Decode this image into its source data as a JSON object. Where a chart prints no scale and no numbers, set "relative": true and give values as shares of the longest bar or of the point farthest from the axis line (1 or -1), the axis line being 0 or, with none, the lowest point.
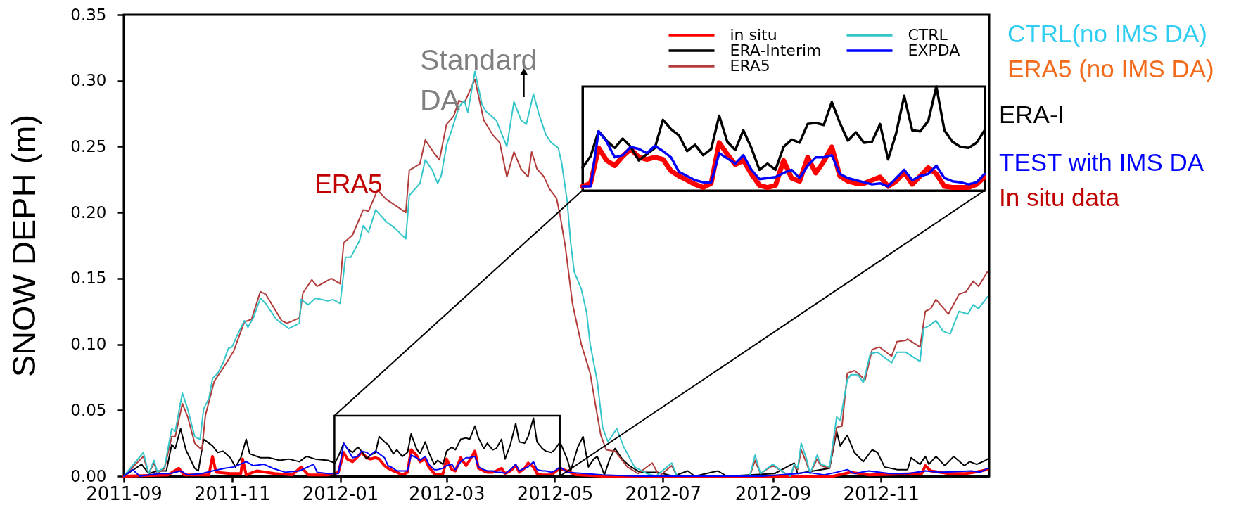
{
  "chart_data": [
    {
      "type": "line",
      "ylabel": "SNOW DEPH (m)",
      "xlim": [
        "2011-09-01",
        "2013-01-01"
      ],
      "xticks": [
        "2011-09",
        "2011-11",
        "2012-01",
        "2012-03",
        "2012-05",
        "2012-07",
        "2012-09",
        "2012-11"
      ],
      "ylim": [
        0,
        0.35
      ],
      "yticks": [
        {
          "value": 0,
          "label": "0.00"
        },
        0.05,
        {
          "value": 0.1,
          "label": "0.10"
        },
        0.15,
        {
          "value": 0.2,
          "label": "0.20"
        },
        0.25,
        {
          "value": 0.3,
          "label": "0.30"
        },
        0.35
      ],
      "legend": "top right",
      "series": [
        {
          "name": "in situ",
          "color": "#ff0000",
          "x": [
            "2011-09-01",
            "2011-09-26",
            "2011-10-02",
            "2011-10-05",
            "2011-10-19",
            "2011-10-21",
            "2011-10-23",
            "2011-10-31",
            "2011-11-06",
            "2011-11-07",
            "2011-11-09",
            "2011-11-15",
            "2011-11-25",
            "2011-12-05",
            "2011-12-10",
            "2011-12-14",
            "2011-12-25",
            "2011-12-29",
            "2011-12-31",
            "2012-01-03",
            "2012-01-05",
            "2012-01-08",
            "2012-01-11",
            "2012-01-13",
            "2012-01-16",
            "2012-01-18",
            "2012-01-21",
            "2012-01-23",
            "2012-01-26",
            "2012-01-28",
            "2012-01-31",
            "2012-02-02",
            "2012-02-05",
            "2012-02-08",
            "2012-02-10",
            "2012-02-13",
            "2012-02-15",
            "2012-02-18",
            "2012-02-20",
            "2012-02-23",
            "2012-02-25",
            "2012-02-28",
            "2012-03-01",
            "2012-03-04",
            "2012-03-06",
            "2012-03-09",
            "2012-03-12",
            "2012-03-14",
            "2012-03-17",
            "2012-03-19",
            "2012-03-22",
            "2012-03-24",
            "2012-03-27",
            "2012-03-29",
            "2012-04-01",
            "2012-04-03",
            "2012-04-06",
            "2012-04-09",
            "2012-04-11",
            "2012-04-14",
            "2012-04-16",
            "2012-04-19",
            "2012-04-21",
            "2012-04-24",
            "2012-04-26",
            "2012-04-29",
            "2012-05-01",
            "2012-05-04",
            "2012-05-08",
            "2012-05-13",
            "2012-05-28",
            "2012-10-05",
            "2012-10-15",
            "2012-10-25",
            "2012-11-24",
            "2012-11-26",
            "2012-11-29",
            "2012-12-09",
            "2012-12-19",
            "2012-12-24",
            "2012-12-31"
          ],
          "values": [
            0,
            0.001,
            0.006,
            0.001,
            0.001,
            0.015,
            0.003,
            0.002,
            0.002,
            0.013,
            0.001,
            0.004,
            0.002,
            0.001,
            0.007,
            0.001,
            0.001,
            0.002,
            0.003,
            0.018,
            0.013,
            0.011,
            0.015,
            0.018,
            0.014,
            0.013,
            0.014,
            0.013,
            0.008,
            0.006,
            0.004,
            0.003,
            0.001,
            0.003,
            0.02,
            0.016,
            0.011,
            0.013,
            0.007,
            0.002,
            0.001,
            0.002,
            0.013,
            0.005,
            0.004,
            0.014,
            0.008,
            0.012,
            0.019,
            0.006,
            0.004,
            0.003,
            0.003,
            0.004,
            0.006,
            0.002,
            0.004,
            0.008,
            0.003,
            0.006,
            0.01,
            0.007,
            0.002,
            0.001,
            0.001,
            0.001,
            0.003,
            0.006,
            0.004,
            0.001,
            0,
            0,
            0.003,
            0.001,
            0.002,
            0.008,
            0.004,
            0.002,
            0.002,
            0.003,
            0.005
          ]
        },
        {
          "name": "ERA-Interim",
          "color": "#000000",
          "x": [
            "2011-09-01",
            "2011-09-11",
            "2011-09-15",
            "2011-09-20",
            "2011-09-25",
            "2011-09-28",
            "2011-09-30",
            "2011-10-03",
            "2011-10-06",
            "2011-10-11",
            "2011-10-13",
            "2011-10-16",
            "2011-10-19",
            "2011-10-21",
            "2011-10-24",
            "2011-10-27",
            "2011-10-31",
            "2011-11-03",
            "2011-11-06",
            "2011-11-09",
            "2011-11-11",
            "2011-11-17",
            "2011-11-22",
            "2011-11-28",
            "2011-12-03",
            "2011-12-09",
            "2011-12-13",
            "2011-12-18",
            "2011-12-25",
            "2011-12-29",
            "2011-12-31",
            "2012-01-03",
            "2012-01-05",
            "2012-01-08",
            "2012-01-11",
            "2012-01-13",
            "2012-01-16",
            "2012-01-18",
            "2012-01-21",
            "2012-01-23",
            "2012-01-26",
            "2012-01-28",
            "2012-01-31",
            "2012-02-02",
            "2012-02-05",
            "2012-02-08",
            "2012-02-10",
            "2012-02-13",
            "2012-02-15",
            "2012-02-18",
            "2012-02-20",
            "2012-02-23",
            "2012-02-25",
            "2012-02-28",
            "2012-03-01",
            "2012-03-04",
            "2012-03-06",
            "2012-03-09",
            "2012-03-12",
            "2012-03-14",
            "2012-03-17",
            "2012-03-19",
            "2012-03-22",
            "2012-03-24",
            "2012-03-27",
            "2012-03-29",
            "2012-04-01",
            "2012-04-03",
            "2012-04-06",
            "2012-04-09",
            "2012-04-11",
            "2012-04-14",
            "2012-04-16",
            "2012-04-19",
            "2012-04-21",
            "2012-04-24",
            "2012-04-26",
            "2012-04-29",
            "2012-05-01",
            "2012-05-04",
            "2012-05-08",
            "2012-05-10",
            "2012-05-14",
            "2012-05-17",
            "2012-05-20",
            "2012-05-23",
            "2012-05-25",
            "2012-05-29",
            "2012-06-01",
            "2012-06-04",
            "2012-06-08",
            "2012-06-12",
            "2012-06-18",
            "2012-06-28",
            "2012-07-07",
            "2012-07-15",
            "2012-07-19",
            "2012-08-01",
            "2012-08-06",
            "2012-09-02",
            "2012-09-13",
            "2012-09-15",
            "2012-10-03",
            "2012-10-07",
            "2012-10-09",
            "2012-10-13",
            "2012-10-17",
            "2012-10-22",
            "2012-10-27",
            "2012-10-30",
            "2012-11-03",
            "2012-11-10",
            "2012-11-16",
            "2012-11-18",
            "2012-11-23",
            "2012-11-26",
            "2012-11-28",
            "2012-12-02",
            "2012-12-07",
            "2012-12-12",
            "2012-12-18",
            "2012-12-21",
            "2012-12-25",
            "2012-12-30",
            "2012-12-31"
          ],
          "values": [
            0,
            0.009,
            0.002,
            0.004,
            0.004,
            0.024,
            0.021,
            0.036,
            0.02,
            0.006,
            0.004,
            0.028,
            0.025,
            0.023,
            0.018,
            0.019,
            0.014,
            0.007,
            0.014,
            0.028,
            0.017,
            0.014,
            0.014,
            0.012,
            0.013,
            0.011,
            0.015,
            0.013,
            0.012,
            0.01,
            0.015,
            0.025,
            0.021,
            0.018,
            0.022,
            0.019,
            0.013,
            0.016,
            0.018,
            0.03,
            0.026,
            0.024,
            0.017,
            0.02,
            0.015,
            0.018,
            0.032,
            0.021,
            0.017,
            0.026,
            0.018,
            0.009,
            0.012,
            0.009,
            0.019,
            0.022,
            0.02,
            0.028,
            0.029,
            0.028,
            0.038,
            0.029,
            0.021,
            0.025,
            0.02,
            0.021,
            0.028,
            0.013,
            0.024,
            0.04,
            0.026,
            0.025,
            0.03,
            0.044,
            0.026,
            0.021,
            0.019,
            0.018,
            0.02,
            0.026,
            0.013,
            0.004,
            0.022,
            0.03,
            0.007,
            0.013,
            0.015,
            0.001,
            0.013,
            0.021,
            0.013,
            0.008,
            0.003,
            0.003,
            0,
            0.004,
            0,
            0.004,
            0,
            0.002,
            0.01,
            0.002,
            0.006,
            0.034,
            0.023,
            0.031,
            0.018,
            0.011,
            0.02,
            0.018,
            0.007,
            0.005,
            0.005,
            0.014,
            0.009,
            0.015,
            0.009,
            0.015,
            0.008,
            0.015,
            0.008,
            0.011,
            0.009,
            0.012,
            0.013
          ]
        },
        {
          "name": "ERA5",
          "color": "#b23b3b",
          "x": [
            "2011-09-01",
            "2011-09-12",
            "2011-09-15",
            "2011-09-18",
            "2011-09-20",
            "2011-09-24",
            "2011-09-28",
            "2011-09-30",
            "2011-10-04",
            "2011-10-07",
            "2011-10-11",
            "2011-10-15",
            "2011-10-17",
            "2011-10-22",
            "2011-10-28",
            "2011-11-02",
            "2011-11-08",
            "2011-11-12",
            "2011-11-17",
            "2011-11-20",
            "2011-11-29",
            "2011-12-02",
            "2011-12-09",
            "2011-12-11",
            "2011-12-16",
            "2011-12-19",
            "2011-12-27",
            "2012-01-01",
            "2012-01-03",
            "2012-01-08",
            "2012-01-14",
            "2012-01-17",
            "2012-01-22",
            "2012-01-27",
            "2012-02-07",
            "2012-02-09",
            "2012-02-15",
            "2012-02-18",
            "2012-02-23",
            "2012-02-26",
            "2012-03-01",
            "2012-03-05",
            "2012-03-08",
            "2012-03-11",
            "2012-03-17",
            "2012-03-22",
            "2012-03-27",
            "2012-03-31",
            "2012-04-04",
            "2012-04-08",
            "2012-04-12",
            "2012-04-16",
            "2012-04-18",
            "2012-04-21",
            "2012-04-25",
            "2012-04-28",
            "2012-05-02",
            "2012-05-04",
            "2012-05-07",
            "2012-05-11",
            "2012-05-16",
            "2012-05-21",
            "2012-05-24",
            "2012-05-27",
            "2012-05-30",
            "2012-06-04",
            "2012-06-11",
            "2012-06-17",
            "2012-06-25",
            "2012-06-29",
            "2012-07-06",
            "2012-07-09",
            "2012-08-06",
            "2012-08-19",
            "2012-08-22",
            "2012-08-25",
            "2012-09-01",
            "2012-09-07",
            "2012-09-11",
            "2012-09-13",
            "2012-09-15",
            "2012-09-17",
            "2012-09-20",
            "2012-09-22",
            "2012-09-26",
            "2012-09-28",
            "2012-10-03",
            "2012-10-07",
            "2012-10-10",
            "2012-10-13",
            "2012-10-17",
            "2012-10-19",
            "2012-10-23",
            "2012-10-27",
            "2012-10-31",
            "2012-11-07",
            "2012-11-10",
            "2012-11-15",
            "2012-11-16",
            "2012-11-23",
            "2012-11-26",
            "2012-11-29",
            "2012-12-02",
            "2012-12-09",
            "2012-12-15",
            "2012-12-19",
            "2012-12-23",
            "2012-12-26",
            "2012-12-31"
          ],
          "values": [
            0,
            0.015,
            0.002,
            0.01,
            0.002,
            0.006,
            0.03,
            0.03,
            0.055,
            0.045,
            0.025,
            0.02,
            0.046,
            0.072,
            0.084,
            0.095,
            0.117,
            0.119,
            0.14,
            0.138,
            0.118,
            0.116,
            0.12,
            0.139,
            0.149,
            0.144,
            0.15,
            0.146,
            0.177,
            0.183,
            0.202,
            0.201,
            0.217,
            0.21,
            0.2,
            0.232,
            0.237,
            0.255,
            0.245,
            0.24,
            0.267,
            0.273,
            0.285,
            0.283,
            0.301,
            0.27,
            0.259,
            0.253,
            0.227,
            0.246,
            0.233,
            0.227,
            0.246,
            0.233,
            0.227,
            0.218,
            0.211,
            0.198,
            0.174,
            0.131,
            0.1,
            0.078,
            0.054,
            0.031,
            0.02,
            0.019,
            0.007,
            0.002,
            0.01,
            0,
            0.008,
            0,
            0,
            0,
            0.012,
            0.002,
            0.008,
            0.003,
            0,
            0.008,
            0.005,
            0.02,
            0.01,
            0.002,
            0.013,
            0.008,
            0.006,
            0.037,
            0.038,
            0.078,
            0.08,
            0.078,
            0.073,
            0.096,
            0.098,
            0.091,
            0.102,
            0.103,
            0.104,
            0.098,
            0.125,
            0.127,
            0.134,
            0.123,
            0.138,
            0.14,
            0.148,
            0.144,
            0.155
          ]
        },
        {
          "name": "CTRL",
          "color": "#33c5c9",
          "x": [
            "2011-09-01",
            "2011-09-12",
            "2011-09-15",
            "2011-09-18",
            "2011-09-20",
            "2011-09-24",
            "2011-09-28",
            "2011-09-30",
            "2011-10-04",
            "2011-10-07",
            "2011-10-11",
            "2011-10-14",
            "2011-10-16",
            "2011-10-19",
            "2011-10-21",
            "2011-10-24",
            "2011-10-27",
            "2011-10-30",
            "2011-11-01",
            "2011-11-04",
            "2011-11-08",
            "2011-11-10",
            "2011-11-13",
            "2011-11-17",
            "2011-11-20",
            "2011-11-26",
            "2011-12-03",
            "2011-12-09",
            "2011-12-10",
            "2011-12-14",
            "2011-12-18",
            "2011-12-25",
            "2011-12-28",
            "2012-01-01",
            "2012-01-04",
            "2012-01-07",
            "2012-01-12",
            "2012-01-14",
            "2012-01-17",
            "2012-01-21",
            "2012-01-27",
            "2012-02-01",
            "2012-02-07",
            "2012-02-09",
            "2012-02-15",
            "2012-02-18",
            "2012-02-22",
            "2012-02-25",
            "2012-02-27",
            "2012-03-01",
            "2012-03-04",
            "2012-03-08",
            "2012-03-11",
            "2012-03-13",
            "2012-03-17",
            "2012-03-21",
            "2012-03-23",
            "2012-03-29",
            "2012-04-04",
            "2012-04-08",
            "2012-04-12",
            "2012-04-15",
            "2012-04-19",
            "2012-04-22",
            "2012-04-26",
            "2012-04-29",
            "2012-05-03",
            "2012-05-05",
            "2012-05-08",
            "2012-05-10",
            "2012-05-12",
            "2012-05-16",
            "2012-05-19",
            "2012-05-21",
            "2012-05-25",
            "2012-05-28",
            "2012-05-31",
            "2012-06-05",
            "2012-06-09",
            "2012-06-15",
            "2012-06-22",
            "2012-06-27",
            "2012-07-06",
            "2012-07-09",
            "2012-08-06",
            "2012-08-19",
            "2012-08-22",
            "2012-08-25",
            "2012-09-01",
            "2012-09-07",
            "2012-09-11",
            "2012-09-13",
            "2012-09-15",
            "2012-09-17",
            "2012-09-20",
            "2012-09-22",
            "2012-09-26",
            "2012-09-28",
            "2012-10-03",
            "2012-10-07",
            "2012-10-09",
            "2012-10-13",
            "2012-10-15",
            "2012-10-19",
            "2012-10-22",
            "2012-10-26",
            "2012-10-30",
            "2012-11-07",
            "2012-11-10",
            "2012-11-15",
            "2012-11-23",
            "2012-11-25",
            "2012-11-28",
            "2012-12-02",
            "2012-12-06",
            "2012-12-10",
            "2012-12-15",
            "2012-12-20",
            "2012-12-23",
            "2012-12-26",
            "2012-12-31"
          ],
          "values": [
            0,
            0.018,
            0.002,
            0.012,
            0.003,
            0.007,
            0.036,
            0.034,
            0.063,
            0.051,
            0.03,
            0.028,
            0.051,
            0.059,
            0.074,
            0.078,
            0.086,
            0.097,
            0.098,
            0.107,
            0.118,
            0.113,
            0.12,
            0.135,
            0.131,
            0.119,
            0.112,
            0.116,
            0.134,
            0.13,
            0.135,
            0.133,
            0.134,
            0.131,
            0.166,
            0.166,
            0.179,
            0.19,
            0.185,
            0.202,
            0.193,
            0.188,
            0.18,
            0.213,
            0.222,
            0.24,
            0.232,
            0.222,
            0.228,
            0.251,
            0.263,
            0.28,
            0.285,
            0.276,
            0.307,
            0.282,
            0.277,
            0.27,
            0.25,
            0.284,
            0.27,
            0.267,
            0.29,
            0.275,
            0.259,
            0.253,
            0.249,
            0.237,
            0.209,
            0.177,
            0.155,
            0.142,
            0.124,
            0.1,
            0.072,
            0.037,
            0.026,
            0.036,
            0.022,
            0.007,
            0.002,
            0,
            0.01,
            0,
            0,
            0,
            0.016,
            0.002,
            0.009,
            0.003,
            0,
            0.009,
            0.006,
            0.025,
            0.013,
            0.002,
            0.016,
            0.009,
            0.007,
            0.045,
            0.042,
            0.073,
            0.077,
            0.077,
            0.071,
            0.093,
            0.094,
            0.086,
            0.094,
            0.094,
            0.087,
            0.112,
            0.114,
            0.118,
            0.11,
            0.108,
            0.125,
            0.123,
            0.13,
            0.127,
            0.136
          ]
        },
        {
          "name": "EXPDA",
          "color": "#0000ff",
          "x": [
            "2011-09-01",
            "2011-09-06",
            "2011-09-10",
            "2011-09-21",
            "2011-09-27",
            "2011-10-03",
            "2011-10-07",
            "2011-10-15",
            "2011-10-21",
            "2011-10-28",
            "2011-11-02",
            "2011-11-09",
            "2011-11-13",
            "2011-11-19",
            "2011-11-24",
            "2011-12-01",
            "2011-12-09",
            "2011-12-17",
            "2011-12-19",
            "2011-12-25",
            "2011-12-29",
            "2011-12-31",
            "2012-01-03",
            "2012-01-05",
            "2012-01-08",
            "2012-01-11",
            "2012-01-13",
            "2012-01-16",
            "2012-01-18",
            "2012-01-21",
            "2012-01-23",
            "2012-01-26",
            "2012-01-28",
            "2012-01-31",
            "2012-02-02",
            "2012-02-05",
            "2012-02-08",
            "2012-02-10",
            "2012-02-13",
            "2012-02-15",
            "2012-02-18",
            "2012-02-20",
            "2012-02-23",
            "2012-02-25",
            "2012-02-28",
            "2012-03-01",
            "2012-03-04",
            "2012-03-06",
            "2012-03-09",
            "2012-03-12",
            "2012-03-14",
            "2012-03-17",
            "2012-03-19",
            "2012-03-22",
            "2012-03-24",
            "2012-03-27",
            "2012-03-29",
            "2012-04-01",
            "2012-04-03",
            "2012-04-06",
            "2012-04-09",
            "2012-04-11",
            "2012-04-14",
            "2012-04-16",
            "2012-04-19",
            "2012-04-21",
            "2012-04-24",
            "2012-04-26",
            "2012-04-29",
            "2012-05-01",
            "2012-05-04",
            "2012-05-08",
            "2012-05-18",
            "2012-05-28",
            "2012-06-17",
            "2012-08-26",
            "2012-09-15",
            "2012-09-20",
            "2012-09-30",
            "2012-10-07",
            "2012-10-13",
            "2012-10-17",
            "2012-10-25",
            "2012-11-06",
            "2012-11-16",
            "2012-11-26",
            "2012-12-04",
            "2012-12-22",
            "2012-12-27",
            "2012-12-31"
          ],
          "values": [
            0,
            0.005,
            0,
            0.002,
            0.002,
            0.004,
            0.001,
            0.002,
            0.004,
            0.006,
            0.007,
            0.011,
            0.008,
            0.009,
            0.006,
            0.003,
            0.004,
            0.009,
            0.003,
            0.002,
            0.002,
            0.002,
            0.025,
            0.021,
            0.014,
            0.015,
            0.019,
            0.018,
            0.016,
            0.019,
            0.017,
            0.014,
            0.008,
            0.006,
            0.004,
            0.004,
            0.004,
            0.016,
            0.014,
            0.012,
            0.015,
            0.009,
            0.005,
            0.005,
            0.006,
            0.008,
            0.009,
            0.005,
            0.011,
            0.014,
            0.014,
            0.015,
            0.007,
            0.005,
            0.004,
            0.004,
            0.003,
            0.003,
            0.002,
            0.005,
            0.009,
            0.004,
            0.006,
            0.007,
            0.011,
            0.005,
            0.004,
            0.004,
            0.003,
            0.004,
            0.007,
            0.003,
            0.002,
            0.001,
            0,
            0,
            0.002,
            0.003,
            0.001,
            0.003,
            0.005,
            0.002,
            0.004,
            0.002,
            0.002,
            0.004,
            0.003,
            0.004,
            0.003,
            0.006
          ]
        }
      ],
      "annotations": [
        "ERA5",
        "Standard DA",
        "CTRL(no IMS DA)",
        "ERA5 (no IMS DA)",
        "ERA-I",
        "TEST with IMS DA",
        "In situ data"
      ]
    },
    {
      "type": "line",
      "relative": true,
      "categories": [
        null,
        null,
        null,
        null,
        null,
        null,
        null,
        null,
        null,
        null,
        null,
        null,
        null,
        null,
        null,
        null,
        null,
        null,
        null,
        null,
        null,
        null,
        null,
        null,
        null,
        null,
        null,
        null,
        null,
        null,
        null,
        null,
        null,
        null,
        null,
        null,
        null,
        null,
        null,
        null,
        null,
        null,
        null,
        null,
        null,
        null,
        null,
        null,
        null,
        null,
        null
      ],
      "series": [
        {
          "color": "#ff0000",
          "values": [
            0.04,
            0.07,
            0.41,
            0.29,
            0.24,
            0.33,
            0.4,
            0.32,
            0.3,
            0.32,
            0.3,
            0.19,
            0.14,
            0.1,
            0.06,
            0.03,
            0.07,
            0.46,
            0.35,
            0.25,
            0.29,
            0.16,
            0.05,
            0.03,
            0.05,
            0.29,
            0.12,
            0.09,
            0.32,
            0.17,
            0.28,
            0.42,
            0.14,
            0.09,
            0.07,
            0.07,
            0.1,
            0.13,
            0.04,
            0.09,
            0.18,
            0.06,
            0.14,
            0.22,
            0.16,
            0.04,
            0.03,
            0.03,
            0.03,
            0.06,
            0.13
          ]
        },
        {
          "color": "#000000",
          "values": [
            0.22,
            0.33,
            0.57,
            0.48,
            0.41,
            0.5,
            0.42,
            0.29,
            0.35,
            0.41,
            0.68,
            0.59,
            0.53,
            0.38,
            0.44,
            0.34,
            0.4,
            0.72,
            0.47,
            0.39,
            0.58,
            0.41,
            0.2,
            0.26,
            0.2,
            0.42,
            0.49,
            0.46,
            0.64,
            0.65,
            0.63,
            0.85,
            0.65,
            0.48,
            0.56,
            0.46,
            0.47,
            0.64,
            0.3,
            0.55,
            0.91,
            0.58,
            0.57,
            0.67,
            1,
            0.58,
            0.47,
            0.42,
            0.41,
            0.46,
            0.58
          ]
        },
        {
          "color": "#0000ff",
          "values": [
            0.04,
            0.04,
            0.57,
            0.47,
            0.32,
            0.34,
            0.42,
            0.4,
            0.36,
            0.43,
            0.38,
            0.32,
            0.18,
            0.14,
            0.1,
            0.08,
            0.08,
            0.36,
            0.31,
            0.26,
            0.34,
            0.2,
            0.11,
            0.12,
            0.13,
            0.17,
            0.2,
            0.12,
            0.24,
            0.32,
            0.32,
            0.34,
            0.16,
            0.12,
            0.1,
            0.08,
            0.06,
            0.07,
            0.04,
            0.12,
            0.2,
            0.1,
            0.14,
            0.16,
            0.24,
            0.12,
            0.09,
            0.08,
            0.06,
            0.08,
            0.16
          ]
        }
      ]
    }
  ]
}
